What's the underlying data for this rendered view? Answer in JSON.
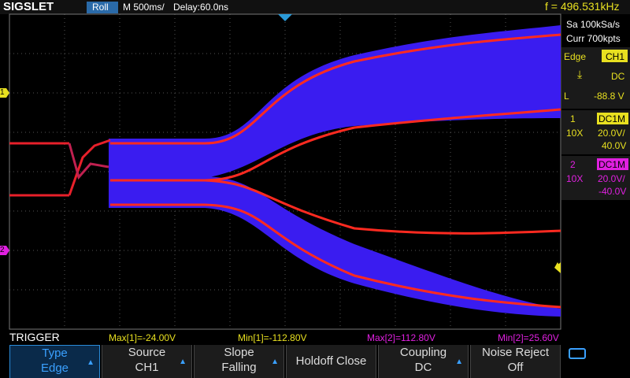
{
  "header": {
    "logo": "SIGSLET",
    "mode": "Roll",
    "timebase": "M 500ms/",
    "delay": "Delay:60.0ns",
    "frequency": "f = 496.531kHz"
  },
  "acquisition": {
    "sample_rate": "Sa 100kSa/s",
    "memory": "Curr 700kpts"
  },
  "trigger": {
    "type": "Edge",
    "source": "CH1",
    "coupling": "DC",
    "level_label": "L",
    "level": "-88.8 V"
  },
  "channels": [
    {
      "number": "1",
      "coupling": "DC1M",
      "probe": "10X",
      "scale": "20.0V/",
      "offset": "40.0V"
    },
    {
      "number": "2",
      "coupling": "DC1M",
      "probe": "10X",
      "scale": "20.0V/",
      "offset": "-40.0V"
    }
  ],
  "measurements": {
    "label": "TRIGGER",
    "items": [
      "Max[1]=-24.00V",
      "Min[1]=-112.80V",
      "Max[2]=112.80V",
      "Min[2]=25.60V"
    ]
  },
  "menu": [
    {
      "title": "Type",
      "value": "Edge"
    },
    {
      "title": "Source",
      "value": "CH1"
    },
    {
      "title": "Slope",
      "value": "Falling"
    },
    {
      "title": "Holdoff Close"
    },
    {
      "title": "Coupling",
      "value": "DC"
    },
    {
      "title": "Noise Reject",
      "value": "Off"
    }
  ]
}
